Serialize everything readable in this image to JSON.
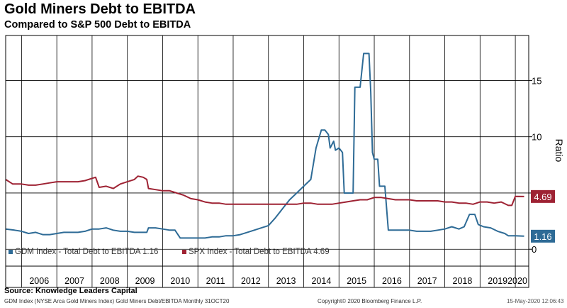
{
  "header": {
    "title": "Gold Miners Debt to EBITDA",
    "subtitle": "Compared to S&P 500 Debt to EBITDA"
  },
  "footer": {
    "source": "Source:  Knowledge Leaders Capital",
    "left_note": "GDM Index (NYSE Arca Gold Miners Index) Gold Miners Debt/EBITDA  Monthly 31OCT20",
    "copyright": "Copyright© 2020 Bloomberg Finance L.P.",
    "timestamp": "15-May-2020 12:06:43"
  },
  "chart_data": {
    "type": "line",
    "ylabel": "Ratio",
    "ylim": [
      -1.5,
      19
    ],
    "y_ticks": [
      0,
      5,
      10,
      15
    ],
    "x_ticks": [
      "2006",
      "2007",
      "2008",
      "2009",
      "2010",
      "2011",
      "2012",
      "2013",
      "2014",
      "2015",
      "2016",
      "2017",
      "2018",
      "2019",
      "2020"
    ],
    "xlim": [
      2005.55,
      2020.38
    ],
    "grid": true,
    "legend_position": "bottom-left",
    "series": [
      {
        "name": "GDM Index - Total Debt to EBITDA 1.16",
        "label": "1.16",
        "color": "#2e6b96",
        "points": [
          [
            2005.55,
            1.8
          ],
          [
            2005.8,
            1.7
          ],
          [
            2006.0,
            1.6
          ],
          [
            2006.2,
            1.4
          ],
          [
            2006.4,
            1.5
          ],
          [
            2006.6,
            1.3
          ],
          [
            2006.8,
            1.3
          ],
          [
            2007.0,
            1.4
          ],
          [
            2007.2,
            1.5
          ],
          [
            2007.4,
            1.5
          ],
          [
            2007.6,
            1.5
          ],
          [
            2007.8,
            1.6
          ],
          [
            2008.0,
            1.8
          ],
          [
            2008.2,
            1.8
          ],
          [
            2008.4,
            1.9
          ],
          [
            2008.6,
            1.7
          ],
          [
            2008.8,
            1.6
          ],
          [
            2009.0,
            1.6
          ],
          [
            2009.2,
            1.5
          ],
          [
            2009.4,
            1.5
          ],
          [
            2009.55,
            1.5
          ],
          [
            2009.6,
            1.9
          ],
          [
            2009.8,
            1.9
          ],
          [
            2010.0,
            1.8
          ],
          [
            2010.2,
            1.7
          ],
          [
            2010.35,
            1.7
          ],
          [
            2010.5,
            1.0
          ],
          [
            2010.8,
            1.0
          ],
          [
            2011.0,
            1.0
          ],
          [
            2011.2,
            1.0
          ],
          [
            2011.4,
            1.1
          ],
          [
            2011.6,
            1.1
          ],
          [
            2011.8,
            1.2
          ],
          [
            2012.0,
            1.2
          ],
          [
            2012.2,
            1.3
          ],
          [
            2012.4,
            1.5
          ],
          [
            2012.6,
            1.7
          ],
          [
            2012.8,
            1.9
          ],
          [
            2013.0,
            2.1
          ],
          [
            2013.2,
            2.8
          ],
          [
            2013.4,
            3.6
          ],
          [
            2013.6,
            4.4
          ],
          [
            2013.8,
            5.0
          ],
          [
            2014.0,
            5.6
          ],
          [
            2014.2,
            6.2
          ],
          [
            2014.35,
            9.0
          ],
          [
            2014.5,
            10.6
          ],
          [
            2014.6,
            10.6
          ],
          [
            2014.7,
            10.2
          ],
          [
            2014.75,
            9.0
          ],
          [
            2014.85,
            9.6
          ],
          [
            2014.9,
            8.8
          ],
          [
            2015.0,
            9.0
          ],
          [
            2015.1,
            8.6
          ],
          [
            2015.15,
            5.0
          ],
          [
            2015.3,
            5.0
          ],
          [
            2015.4,
            5.0
          ],
          [
            2015.45,
            14.4
          ],
          [
            2015.6,
            14.4
          ],
          [
            2015.7,
            17.4
          ],
          [
            2015.85,
            17.4
          ],
          [
            2015.9,
            14.0
          ],
          [
            2015.95,
            8.6
          ],
          [
            2016.0,
            8.0
          ],
          [
            2016.1,
            8.0
          ],
          [
            2016.15,
            5.6
          ],
          [
            2016.3,
            5.6
          ],
          [
            2016.4,
            1.7
          ],
          [
            2016.6,
            1.7
          ],
          [
            2016.8,
            1.7
          ],
          [
            2017.0,
            1.7
          ],
          [
            2017.2,
            1.6
          ],
          [
            2017.4,
            1.6
          ],
          [
            2017.6,
            1.6
          ],
          [
            2017.8,
            1.7
          ],
          [
            2018.0,
            1.8
          ],
          [
            2018.2,
            2.0
          ],
          [
            2018.4,
            1.8
          ],
          [
            2018.55,
            2.0
          ],
          [
            2018.7,
            3.1
          ],
          [
            2018.85,
            3.1
          ],
          [
            2018.95,
            2.2
          ],
          [
            2019.1,
            2.0
          ],
          [
            2019.3,
            1.9
          ],
          [
            2019.5,
            1.6
          ],
          [
            2019.7,
            1.4
          ],
          [
            2019.8,
            1.2
          ],
          [
            2020.0,
            1.2
          ],
          [
            2020.25,
            1.16
          ]
        ]
      },
      {
        "name": "SPX Index - Total Debt to EBITDA 4.69",
        "label": "4.69",
        "color": "#9e2233",
        "points": [
          [
            2005.55,
            6.2
          ],
          [
            2005.75,
            5.8
          ],
          [
            2006.0,
            5.8
          ],
          [
            2006.2,
            5.7
          ],
          [
            2006.4,
            5.7
          ],
          [
            2006.6,
            5.8
          ],
          [
            2006.8,
            5.9
          ],
          [
            2007.0,
            6.0
          ],
          [
            2007.2,
            6.0
          ],
          [
            2007.4,
            6.0
          ],
          [
            2007.6,
            6.0
          ],
          [
            2007.8,
            6.1
          ],
          [
            2008.0,
            6.3
          ],
          [
            2008.1,
            6.4
          ],
          [
            2008.2,
            5.5
          ],
          [
            2008.4,
            5.6
          ],
          [
            2008.6,
            5.4
          ],
          [
            2008.8,
            5.8
          ],
          [
            2009.0,
            6.0
          ],
          [
            2009.2,
            6.2
          ],
          [
            2009.3,
            6.5
          ],
          [
            2009.45,
            6.4
          ],
          [
            2009.55,
            6.2
          ],
          [
            2009.6,
            5.4
          ],
          [
            2009.8,
            5.3
          ],
          [
            2010.0,
            5.2
          ],
          [
            2010.2,
            5.2
          ],
          [
            2010.4,
            5.0
          ],
          [
            2010.6,
            4.8
          ],
          [
            2010.8,
            4.5
          ],
          [
            2011.0,
            4.4
          ],
          [
            2011.2,
            4.2
          ],
          [
            2011.4,
            4.1
          ],
          [
            2011.6,
            4.1
          ],
          [
            2011.8,
            4.0
          ],
          [
            2012.0,
            4.0
          ],
          [
            2012.2,
            4.0
          ],
          [
            2012.4,
            4.0
          ],
          [
            2012.6,
            4.0
          ],
          [
            2012.8,
            4.0
          ],
          [
            2013.0,
            4.0
          ],
          [
            2013.2,
            4.0
          ],
          [
            2013.4,
            4.0
          ],
          [
            2013.6,
            4.0
          ],
          [
            2013.8,
            4.0
          ],
          [
            2014.0,
            4.1
          ],
          [
            2014.2,
            4.1
          ],
          [
            2014.4,
            4.0
          ],
          [
            2014.6,
            4.0
          ],
          [
            2014.8,
            4.0
          ],
          [
            2015.0,
            4.1
          ],
          [
            2015.2,
            4.2
          ],
          [
            2015.4,
            4.3
          ],
          [
            2015.6,
            4.4
          ],
          [
            2015.8,
            4.4
          ],
          [
            2016.0,
            4.6
          ],
          [
            2016.2,
            4.6
          ],
          [
            2016.4,
            4.5
          ],
          [
            2016.6,
            4.4
          ],
          [
            2016.8,
            4.4
          ],
          [
            2017.0,
            4.4
          ],
          [
            2017.2,
            4.3
          ],
          [
            2017.4,
            4.3
          ],
          [
            2017.6,
            4.3
          ],
          [
            2017.8,
            4.3
          ],
          [
            2018.0,
            4.2
          ],
          [
            2018.2,
            4.2
          ],
          [
            2018.4,
            4.1
          ],
          [
            2018.6,
            4.1
          ],
          [
            2018.8,
            4.0
          ],
          [
            2019.0,
            4.2
          ],
          [
            2019.2,
            4.2
          ],
          [
            2019.4,
            4.1
          ],
          [
            2019.6,
            4.2
          ],
          [
            2019.8,
            3.9
          ],
          [
            2019.9,
            3.9
          ],
          [
            2020.0,
            4.7
          ],
          [
            2020.25,
            4.69
          ]
        ]
      }
    ]
  }
}
